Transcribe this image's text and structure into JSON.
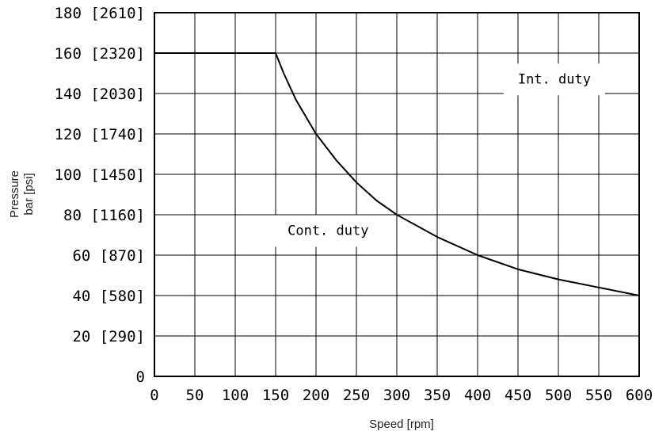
{
  "chart_data": {
    "type": "line",
    "xlabel": "Speed [rpm]",
    "ylabel_line1": "Pressure",
    "ylabel_line2": "bar [psi]",
    "xlim": [
      0,
      600
    ],
    "ylim": [
      0,
      180
    ],
    "grid": true,
    "x_ticks": [
      "0",
      "50",
      "100",
      "150",
      "200",
      "250",
      "300",
      "350",
      "400",
      "450",
      "500",
      "550",
      "600"
    ],
    "y_ticks": [
      {
        "value": 0,
        "label": "0"
      },
      {
        "value": 20,
        "label": "20 [290]"
      },
      {
        "value": 40,
        "label": "40 [580]"
      },
      {
        "value": 60,
        "label": "60 [870]"
      },
      {
        "value": 80,
        "label": "80 [1160]"
      },
      {
        "value": 100,
        "label": "100 [1450]"
      },
      {
        "value": 120,
        "label": "120 [1740]"
      },
      {
        "value": 140,
        "label": "140 [2030]"
      },
      {
        "value": 160,
        "label": "160 [2320]"
      },
      {
        "value": 180,
        "label": "180 [2610]"
      }
    ],
    "series": [
      {
        "x": [
          0,
          150,
          160,
          175,
          200,
          225,
          250,
          275,
          300,
          350,
          400,
          450,
          500,
          550,
          600
        ],
        "y": [
          160,
          160,
          150,
          137,
          120,
          107,
          96,
          87,
          80,
          69,
          60,
          53,
          48,
          44,
          40
        ]
      }
    ],
    "annotations": [
      {
        "text": "Int. duty",
        "x": 495,
        "y": 145
      },
      {
        "text": "Cont. duty",
        "x": 215,
        "y": 70
      }
    ]
  }
}
